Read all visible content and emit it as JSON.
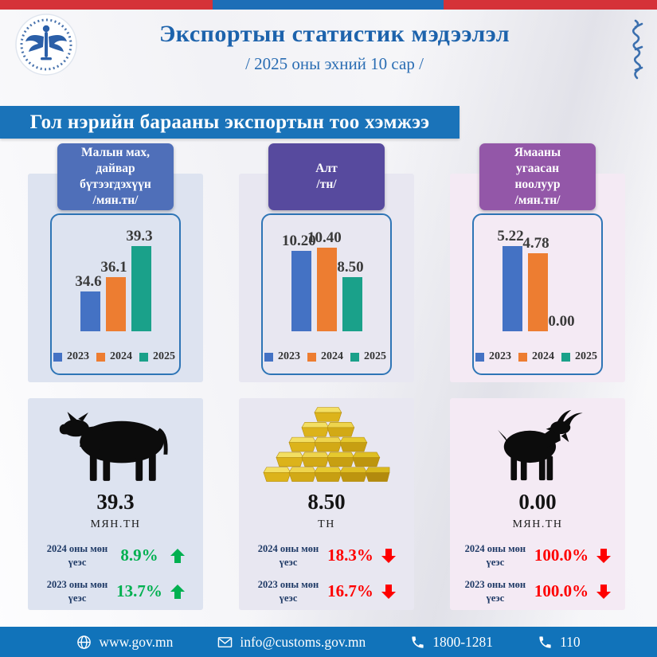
{
  "header": {
    "title": "Экспортын статистик мэдээлэл",
    "subtitle": "/ 2025 оны эхний 10 сар /"
  },
  "banner": {
    "text": "Гол нэрийн барааны экспортын тоо хэмжээ"
  },
  "columns": [
    {
      "header": "Малын мах,\nдайвар\nбүтээгдэхүүн\n/мян.тн/",
      "icon": "cow-icon",
      "total": "39.3",
      "unit": "МЯН.ТН",
      "colors": {
        "header_bg": "#4f6fb9",
        "panel_bg": "#dde3f0"
      },
      "comparisons": [
        {
          "label": "2024 оны мөн үеэс",
          "value": "8.9%",
          "direction": "up",
          "color": "#00b050"
        },
        {
          "label": "2023 оны мөн үеэс",
          "value": "13.7%",
          "direction": "up",
          "color": "#00b050"
        }
      ]
    },
    {
      "header": "Алт\n/тн/",
      "icon": "gold-bars-icon",
      "total": "8.50",
      "unit": "ТН",
      "colors": {
        "header_bg": "#574a9e",
        "panel_bg": "#e8e7f1"
      },
      "comparisons": [
        {
          "label": "2024 оны мөн үеэс",
          "value": "18.3%",
          "direction": "down",
          "color": "#fe0000"
        },
        {
          "label": "2023 оны мөн үеэс",
          "value": "16.7%",
          "direction": "down",
          "color": "#fe0000"
        }
      ]
    },
    {
      "header": "Ямааны\nугаасан\nноолуур\n/мян.тн/",
      "icon": "goat-icon",
      "total": "0.00",
      "unit": "МЯН.ТН",
      "colors": {
        "header_bg": "#9357a8",
        "panel_bg": "#f4eaf4"
      },
      "comparisons": [
        {
          "label": "2024 оны мөн үеэс",
          "value": "100.0%",
          "direction": "down",
          "color": "#fe0000"
        },
        {
          "label": "2023 оны мөн үеэс",
          "value": "100.0%",
          "direction": "down",
          "color": "#fe0000"
        }
      ]
    }
  ],
  "chart_data": [
    {
      "type": "bar",
      "title": "Малын мах, дайвар бүтээгдэхүүн /мян.тн/",
      "categories": [
        "2023",
        "2024",
        "2025"
      ],
      "values": [
        34.6,
        36.1,
        39.3
      ],
      "value_labels": [
        "34.6",
        "36.1",
        "39.3"
      ],
      "series_colors": [
        "#4472c4",
        "#ed7d31",
        "#1aa18a"
      ],
      "ylim": [
        30.5,
        40
      ],
      "grid": false,
      "legend_position": "bottom"
    },
    {
      "type": "bar",
      "title": "Алт /тн/",
      "categories": [
        "2023",
        "2024",
        "2025"
      ],
      "values": [
        10.2,
        10.4,
        8.5
      ],
      "value_labels": [
        "10.20",
        "10.40",
        "8.50"
      ],
      "series_colors": [
        "#4472c4",
        "#ed7d31",
        "#1aa18a"
      ],
      "ylim": [
        5,
        10.9
      ],
      "grid": false,
      "legend_position": "bottom"
    },
    {
      "type": "bar",
      "title": "Ямааны угаасан ноолуур /мян.тн/",
      "categories": [
        "2023",
        "2024",
        "2025"
      ],
      "values": [
        5.22,
        4.78,
        0.0
      ],
      "value_labels": [
        "5.22",
        "4.78",
        "0.00"
      ],
      "series_colors": [
        "#4472c4",
        "#ed7d31",
        "#1aa18a"
      ],
      "ylim": [
        0,
        5.6
      ],
      "grid": false,
      "legend_position": "bottom"
    }
  ],
  "footer": {
    "items": [
      {
        "icon": "globe-icon",
        "text": "www.gov.mn"
      },
      {
        "icon": "mail-icon",
        "text": "info@customs.gov.mn"
      },
      {
        "icon": "phone-icon",
        "text": "1800-1281"
      },
      {
        "icon": "phone-icon",
        "text": "110"
      }
    ]
  },
  "colors": {
    "top_strip_red": "#d53238",
    "top_strip_blue": "#1d6eb7",
    "banner_bg": "#1a73b9",
    "title_text": "#1d63ac",
    "footer_bg": "#1173ba",
    "positive": "#00b050",
    "negative": "#fe0000"
  }
}
